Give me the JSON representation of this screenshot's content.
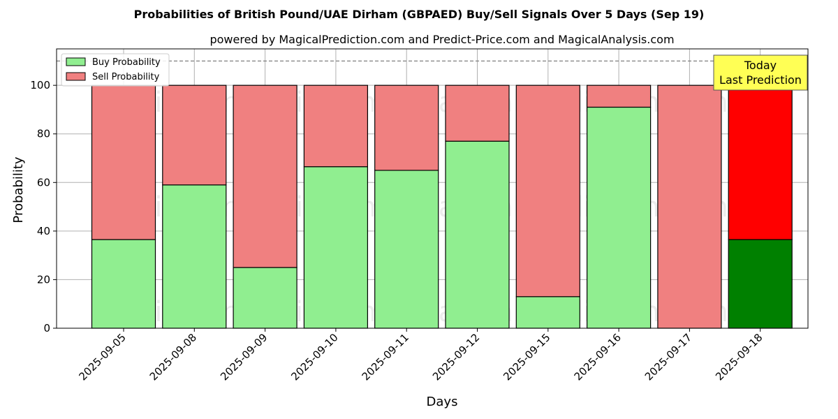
{
  "chart_data": {
    "type": "bar",
    "stacked": true,
    "title": "Probabilities of British Pound/UAE Dirham (GBPAED) Buy/Sell Signals Over 5 Days (Sep 19)",
    "subtitle": "powered by MagicalPrediction.com and Predict-Price.com and MagicalAnalysis.com",
    "xlabel": "Days",
    "ylabel": "Probability",
    "ylim": [
      0,
      115
    ],
    "yticks": [
      0,
      20,
      40,
      60,
      80,
      100
    ],
    "grid": true,
    "legend_position": "top-left",
    "categories": [
      "2025-09-05",
      "2025-09-08",
      "2025-09-09",
      "2025-09-10",
      "2025-09-11",
      "2025-09-12",
      "2025-09-15",
      "2025-09-16",
      "2025-09-17",
      "2025-09-18"
    ],
    "series": [
      {
        "name": "Buy Probability",
        "values": [
          36.5,
          59,
          25,
          66.5,
          65,
          77,
          13,
          91,
          0,
          36.5
        ],
        "color": "#90ee90",
        "highlight_color": "#008000"
      },
      {
        "name": "Sell Probability",
        "values": [
          63.5,
          41,
          75,
          33.5,
          35,
          23,
          87,
          9,
          100,
          63.5
        ],
        "color": "#f08080",
        "highlight_color": "#ff0000"
      }
    ],
    "highlight_index": 9,
    "reference_line": {
      "y": 110,
      "style": "dashed",
      "color": "#808080"
    },
    "annotation": {
      "lines": [
        "Today",
        "Last Prediction"
      ],
      "background": "#ffff55"
    },
    "watermarks": [
      "MagicalAnalysis.com",
      "MagicalPrediction.com",
      "MagicalAnalysis.com",
      "MagicalPrediction.com",
      "MagicalAnalysis.com",
      "MagicalPrediction.com"
    ]
  }
}
